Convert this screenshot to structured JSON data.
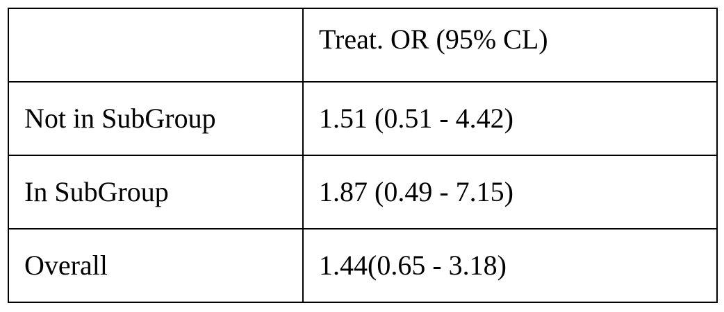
{
  "table": {
    "header": [
      "",
      "Treat. OR (95% CL)"
    ],
    "rows": [
      [
        "Not in SubGroup",
        "1.51 (0.51 - 4.42)"
      ],
      [
        "In SubGroup",
        "1.87 (0.49 - 7.15)"
      ],
      [
        "Overall",
        "1.44(0.65 - 3.18)"
      ]
    ]
  }
}
